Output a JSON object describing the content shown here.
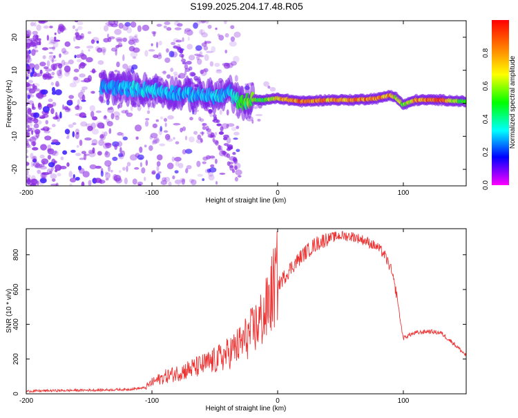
{
  "title": "S199.2025.204.17.48.R05",
  "chart_data": [
    {
      "type": "heatmap",
      "xlabel": "Height of straight line (km)",
      "ylabel": "Frequency (Hz)",
      "xlim": [
        -200,
        150
      ],
      "ylim": [
        -25,
        25
      ],
      "x_ticks": [
        -200,
        -100,
        0,
        100
      ],
      "y_ticks": [
        -20,
        -10,
        0,
        10,
        20
      ],
      "colorbar": {
        "label": "Normalized spectral amplitude",
        "range": [
          0,
          1
        ],
        "ticks": [
          "0.0",
          "0.2",
          "0.4",
          "0.6",
          "0.8"
        ],
        "colormap": "hsv (magenta → blue → cyan → green → yellow → red)"
      },
      "ridge": {
        "description": "dominant frequency trace",
        "x": [
          -140,
          -120,
          -100,
          -80,
          -60,
          -45,
          -38,
          -30,
          -20,
          -10,
          0,
          20,
          40,
          60,
          80,
          90,
          95,
          100,
          110,
          130,
          150
        ],
        "freq_hz": [
          5,
          4.5,
          4,
          3,
          2.5,
          2,
          3.5,
          0,
          1,
          1,
          1.5,
          0.5,
          1,
          1,
          1.5,
          2.5,
          1.5,
          -0.5,
          1,
          1,
          0.5
        ],
        "amplitude": [
          0.3,
          0.35,
          0.35,
          0.3,
          0.35,
          0.35,
          0.3,
          0.5,
          0.6,
          0.55,
          0.8,
          0.95,
          0.85,
          0.9,
          0.85,
          0.85,
          0.7,
          0.6,
          0.85,
          0.95,
          0.5
        ]
      }
    },
    {
      "type": "line",
      "xlabel": "Height of straight line (km)",
      "ylabel": "SNR (10 * v/v)",
      "xlim": [
        -200,
        150
      ],
      "ylim": [
        0,
        950
      ],
      "x_ticks": [
        -200,
        -100,
        0,
        100
      ],
      "y_ticks": [
        0,
        200,
        400,
        600,
        800
      ],
      "color": "#ee3333",
      "series": [
        {
          "x": [
            -200,
            -180,
            -160,
            -140,
            -120,
            -105,
            -100,
            -90,
            -80,
            -70,
            -60,
            -50,
            -40,
            -30,
            -20,
            -10,
            -5,
            0,
            10,
            20,
            30,
            40,
            50,
            60,
            70,
            80,
            85,
            90,
            95,
            98,
            100,
            105,
            110,
            120,
            130,
            140,
            150
          ],
          "y": [
            15,
            18,
            20,
            22,
            25,
            35,
            60,
            90,
            110,
            130,
            150,
            175,
            210,
            260,
            330,
            420,
            520,
            620,
            720,
            800,
            860,
            895,
            910,
            905,
            880,
            840,
            800,
            720,
            560,
            400,
            320,
            340,
            350,
            360,
            350,
            290,
            220
          ]
        }
      ]
    }
  ]
}
